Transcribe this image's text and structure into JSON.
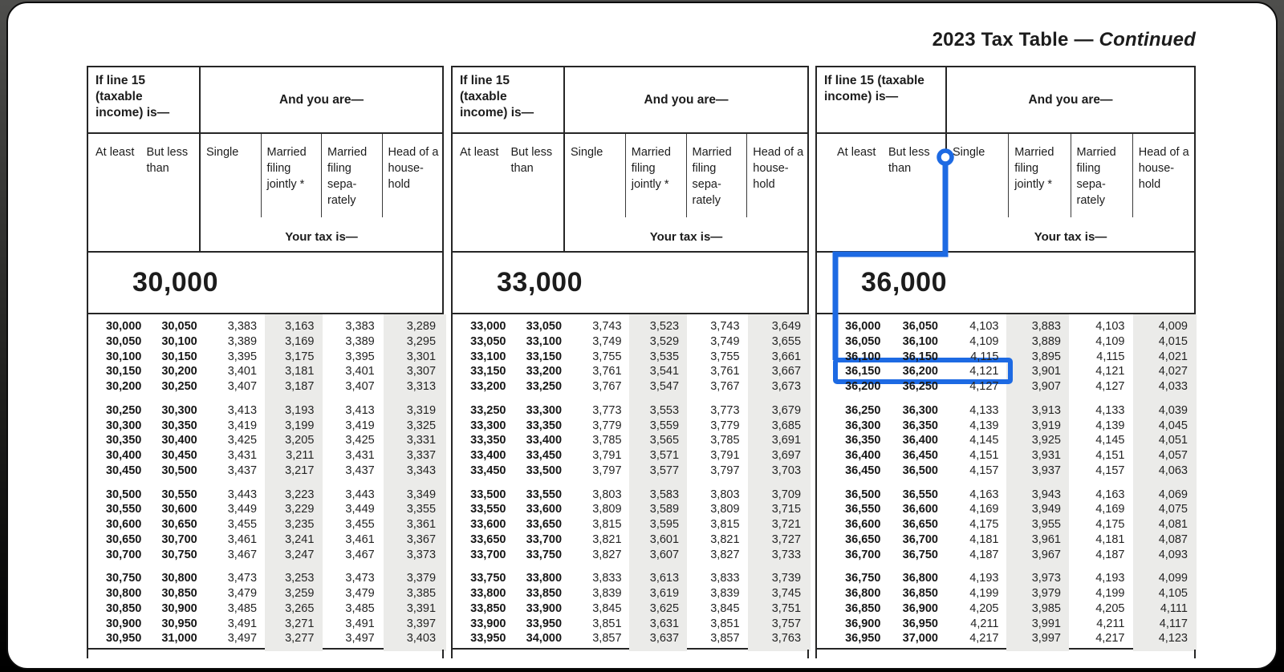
{
  "title": {
    "main": "2023 Tax Table",
    "separator": "—",
    "continued": "Continued"
  },
  "header": {
    "income_label": "If line 15 (taxable income) is—",
    "and_you_are": "And you are—",
    "at_least": "At least",
    "but_less_than": "But less than",
    "filing_columns": [
      "Single",
      "Married filing jointly *",
      "Married filing sepa-rately",
      "Head of a house-hold"
    ],
    "your_tax_is": "Your tax is—"
  },
  "annotation": {
    "color": "#1d6ae3",
    "marked_column": "Single",
    "highlighted_row": {
      "at_least": "36,150",
      "but_less_than": "36,200",
      "single_tax": "4,121"
    }
  },
  "panels": [
    {
      "band": "30,000",
      "groups": [
        [
          [
            "30,000",
            "30,050",
            "3,383",
            "3,163",
            "3,383",
            "3,289"
          ],
          [
            "30,050",
            "30,100",
            "3,389",
            "3,169",
            "3,389",
            "3,295"
          ],
          [
            "30,100",
            "30,150",
            "3,395",
            "3,175",
            "3,395",
            "3,301"
          ],
          [
            "30,150",
            "30,200",
            "3,401",
            "3,181",
            "3,401",
            "3,307"
          ],
          [
            "30,200",
            "30,250",
            "3,407",
            "3,187",
            "3,407",
            "3,313"
          ]
        ],
        [
          [
            "30,250",
            "30,300",
            "3,413",
            "3,193",
            "3,413",
            "3,319"
          ],
          [
            "30,300",
            "30,350",
            "3,419",
            "3,199",
            "3,419",
            "3,325"
          ],
          [
            "30,350",
            "30,400",
            "3,425",
            "3,205",
            "3,425",
            "3,331"
          ],
          [
            "30,400",
            "30,450",
            "3,431",
            "3,211",
            "3,431",
            "3,337"
          ],
          [
            "30,450",
            "30,500",
            "3,437",
            "3,217",
            "3,437",
            "3,343"
          ]
        ],
        [
          [
            "30,500",
            "30,550",
            "3,443",
            "3,223",
            "3,443",
            "3,349"
          ],
          [
            "30,550",
            "30,600",
            "3,449",
            "3,229",
            "3,449",
            "3,355"
          ],
          [
            "30,600",
            "30,650",
            "3,455",
            "3,235",
            "3,455",
            "3,361"
          ],
          [
            "30,650",
            "30,700",
            "3,461",
            "3,241",
            "3,461",
            "3,367"
          ],
          [
            "30,700",
            "30,750",
            "3,467",
            "3,247",
            "3,467",
            "3,373"
          ]
        ],
        [
          [
            "30,750",
            "30,800",
            "3,473",
            "3,253",
            "3,473",
            "3,379"
          ],
          [
            "30,800",
            "30,850",
            "3,479",
            "3,259",
            "3,479",
            "3,385"
          ],
          [
            "30,850",
            "30,900",
            "3,485",
            "3,265",
            "3,485",
            "3,391"
          ],
          [
            "30,900",
            "30,950",
            "3,491",
            "3,271",
            "3,491",
            "3,397"
          ],
          [
            "30,950",
            "31,000",
            "3,497",
            "3,277",
            "3,497",
            "3,403"
          ]
        ]
      ]
    },
    {
      "band": "33,000",
      "groups": [
        [
          [
            "33,000",
            "33,050",
            "3,743",
            "3,523",
            "3,743",
            "3,649"
          ],
          [
            "33,050",
            "33,100",
            "3,749",
            "3,529",
            "3,749",
            "3,655"
          ],
          [
            "33,100",
            "33,150",
            "3,755",
            "3,535",
            "3,755",
            "3,661"
          ],
          [
            "33,150",
            "33,200",
            "3,761",
            "3,541",
            "3,761",
            "3,667"
          ],
          [
            "33,200",
            "33,250",
            "3,767",
            "3,547",
            "3,767",
            "3,673"
          ]
        ],
        [
          [
            "33,250",
            "33,300",
            "3,773",
            "3,553",
            "3,773",
            "3,679"
          ],
          [
            "33,300",
            "33,350",
            "3,779",
            "3,559",
            "3,779",
            "3,685"
          ],
          [
            "33,350",
            "33,400",
            "3,785",
            "3,565",
            "3,785",
            "3,691"
          ],
          [
            "33,400",
            "33,450",
            "3,791",
            "3,571",
            "3,791",
            "3,697"
          ],
          [
            "33,450",
            "33,500",
            "3,797",
            "3,577",
            "3,797",
            "3,703"
          ]
        ],
        [
          [
            "33,500",
            "33,550",
            "3,803",
            "3,583",
            "3,803",
            "3,709"
          ],
          [
            "33,550",
            "33,600",
            "3,809",
            "3,589",
            "3,809",
            "3,715"
          ],
          [
            "33,600",
            "33,650",
            "3,815",
            "3,595",
            "3,815",
            "3,721"
          ],
          [
            "33,650",
            "33,700",
            "3,821",
            "3,601",
            "3,821",
            "3,727"
          ],
          [
            "33,700",
            "33,750",
            "3,827",
            "3,607",
            "3,827",
            "3,733"
          ]
        ],
        [
          [
            "33,750",
            "33,800",
            "3,833",
            "3,613",
            "3,833",
            "3,739"
          ],
          [
            "33,800",
            "33,850",
            "3,839",
            "3,619",
            "3,839",
            "3,745"
          ],
          [
            "33,850",
            "33,900",
            "3,845",
            "3,625",
            "3,845",
            "3,751"
          ],
          [
            "33,900",
            "33,950",
            "3,851",
            "3,631",
            "3,851",
            "3,757"
          ],
          [
            "33,950",
            "34,000",
            "3,857",
            "3,637",
            "3,857",
            "3,763"
          ]
        ]
      ]
    },
    {
      "band": "36,000",
      "groups": [
        [
          [
            "36,000",
            "36,050",
            "4,103",
            "3,883",
            "4,103",
            "4,009"
          ],
          [
            "36,050",
            "36,100",
            "4,109",
            "3,889",
            "4,109",
            "4,015"
          ],
          [
            "36,100",
            "36,150",
            "4,115",
            "3,895",
            "4,115",
            "4,021"
          ],
          [
            "36,150",
            "36,200",
            "4,121",
            "3,901",
            "4,121",
            "4,027"
          ],
          [
            "36,200",
            "36,250",
            "4,127",
            "3,907",
            "4,127",
            "4,033"
          ]
        ],
        [
          [
            "36,250",
            "36,300",
            "4,133",
            "3,913",
            "4,133",
            "4,039"
          ],
          [
            "36,300",
            "36,350",
            "4,139",
            "3,919",
            "4,139",
            "4,045"
          ],
          [
            "36,350",
            "36,400",
            "4,145",
            "3,925",
            "4,145",
            "4,051"
          ],
          [
            "36,400",
            "36,450",
            "4,151",
            "3,931",
            "4,151",
            "4,057"
          ],
          [
            "36,450",
            "36,500",
            "4,157",
            "3,937",
            "4,157",
            "4,063"
          ]
        ],
        [
          [
            "36,500",
            "36,550",
            "4,163",
            "3,943",
            "4,163",
            "4,069"
          ],
          [
            "36,550",
            "36,600",
            "4,169",
            "3,949",
            "4,169",
            "4,075"
          ],
          [
            "36,600",
            "36,650",
            "4,175",
            "3,955",
            "4,175",
            "4,081"
          ],
          [
            "36,650",
            "36,700",
            "4,181",
            "3,961",
            "4,181",
            "4,087"
          ],
          [
            "36,700",
            "36,750",
            "4,187",
            "3,967",
            "4,187",
            "4,093"
          ]
        ],
        [
          [
            "36,750",
            "36,800",
            "4,193",
            "3,973",
            "4,193",
            "4,099"
          ],
          [
            "36,800",
            "36,850",
            "4,199",
            "3,979",
            "4,199",
            "4,105"
          ],
          [
            "36,850",
            "36,900",
            "4,205",
            "3,985",
            "4,205",
            "4,111"
          ],
          [
            "36,900",
            "36,950",
            "4,211",
            "3,991",
            "4,211",
            "4,117"
          ],
          [
            "36,950",
            "37,000",
            "4,217",
            "3,997",
            "4,217",
            "4,123"
          ]
        ]
      ]
    }
  ]
}
